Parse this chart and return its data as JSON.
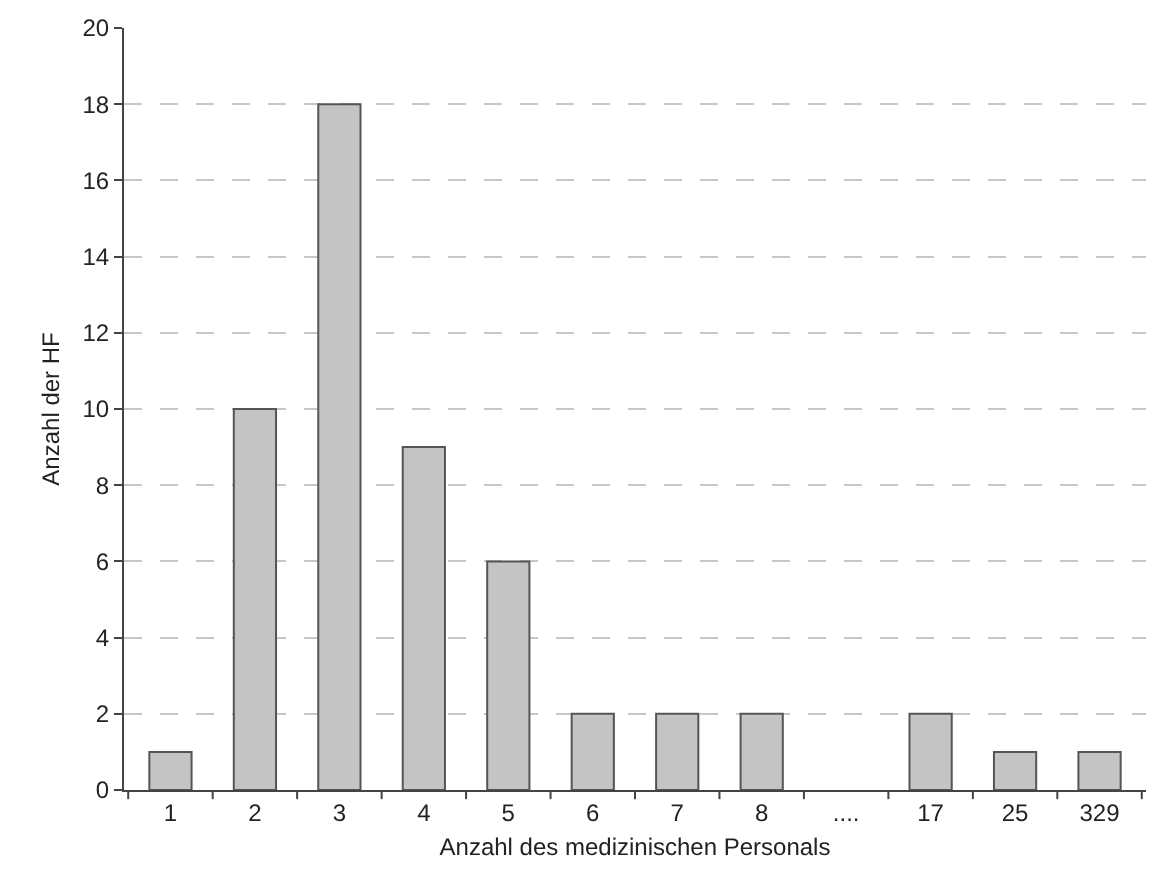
{
  "chart_data": {
    "type": "bar",
    "xlabel": "Anzahl des medizinischen Personals",
    "ylabel": "Anzahl der HF",
    "categories": [
      "1",
      "2",
      "3",
      "4",
      "5",
      "6",
      "7",
      "8",
      "....",
      "17",
      "25",
      "329"
    ],
    "values": [
      1,
      10,
      18,
      9,
      6,
      2,
      2,
      2,
      null,
      2,
      1,
      1
    ],
    "color": "#c4c4c4",
    "ylim": [
      0,
      20
    ],
    "yticks": [
      0,
      2,
      4,
      6,
      8,
      10,
      12,
      14,
      16,
      18,
      20
    ],
    "grid": "y",
    "legend": false
  }
}
